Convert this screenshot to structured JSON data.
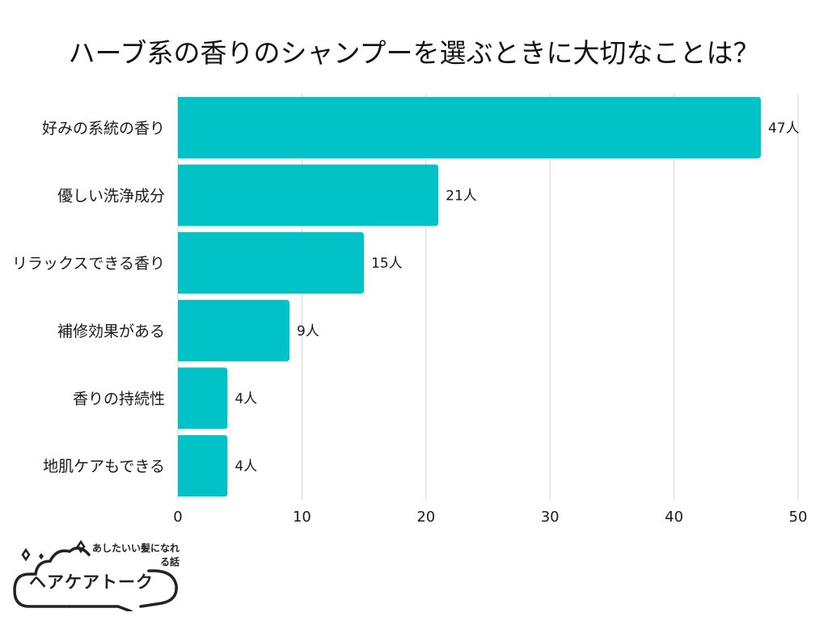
{
  "chart_data": {
    "type": "bar",
    "orientation": "horizontal",
    "title": "ハーブ系の香りのシャンプーを選ぶときに大切なことは？",
    "categories": [
      "好みの系統の香り",
      "優しい洗浄成分",
      "リラックスできる香り",
      "補修効果がある",
      "香りの持続性",
      "地肌ケアもできる"
    ],
    "values": [
      47,
      21,
      15,
      9,
      4,
      4
    ],
    "data_labels": [
      "47人",
      "21人",
      "15人",
      "9人",
      "4人",
      "4人"
    ],
    "xlim": [
      0,
      50
    ],
    "x_ticks": [
      0,
      10,
      20,
      30,
      40,
      50
    ],
    "grid": true,
    "bar_color": "#00c2c7",
    "grid_color": "#d4d4d4"
  },
  "logo": {
    "tagline": "あしたいい髪になれる話",
    "name": "ヘアケアトーク"
  }
}
